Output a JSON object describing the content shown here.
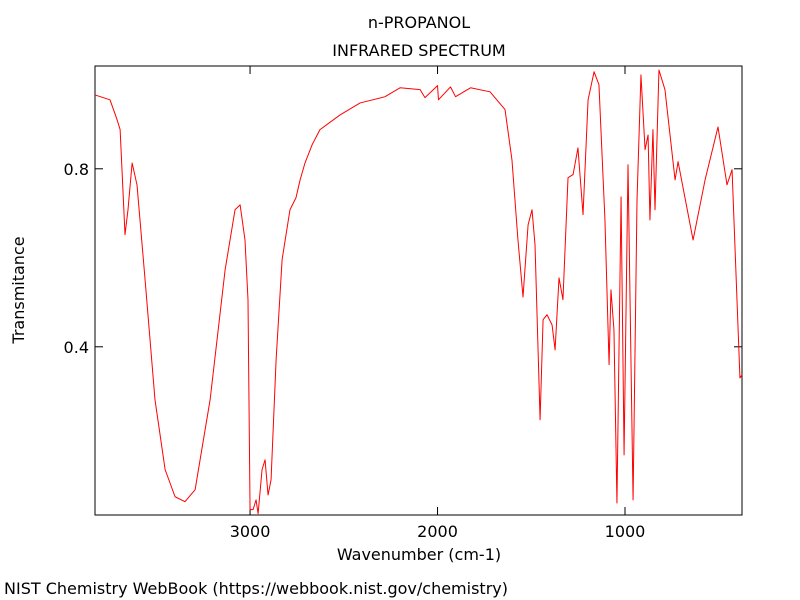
{
  "chart_data": {
    "type": "line",
    "title": "n-PROPANOL",
    "subtitle": "INFRARED SPECTRUM",
    "x_label": "Wavenumber (cm-1)",
    "y_label": "Transmitance",
    "footer": "NIST Chemistry WebBook (https://webbook.nist.gov/chemistry)",
    "color": "#ff0000",
    "xlim": [
      3827,
      376
    ],
    "ylim": [
      0.022,
      1.031
    ],
    "xticks": [
      3000,
      2000,
      1000
    ],
    "yticks": [
      0.8,
      0.4
    ],
    "grid": false,
    "x": [
      3827,
      3747,
      3709,
      3693,
      3667,
      3651,
      3629,
      3603,
      3560,
      3507,
      3453,
      3400,
      3347,
      3293,
      3213,
      3133,
      3080,
      3053,
      3027,
      3011,
      3000,
      2984,
      2968,
      2957,
      2936,
      2920,
      2904,
      2888,
      2861,
      2829,
      2787,
      2755,
      2733,
      2707,
      2669,
      2627,
      2520,
      2413,
      2280,
      2200,
      2093,
      2067,
      2000,
      1995,
      1931,
      1904,
      1824,
      1720,
      1640,
      1603,
      1571,
      1544,
      1517,
      1496,
      1480,
      1453,
      1437,
      1416,
      1389,
      1373,
      1352,
      1331,
      1304,
      1277,
      1251,
      1224,
      1197,
      1165,
      1139,
      1107,
      1085,
      1075,
      1059,
      1043,
      1021,
      1005,
      984,
      957,
      936,
      915,
      893,
      877,
      867,
      851,
      840,
      819,
      787,
      733,
      717,
      637,
      573,
      504,
      456,
      429,
      387,
      376
    ],
    "values": [
      0.966,
      0.955,
      0.91,
      0.888,
      0.652,
      0.708,
      0.813,
      0.764,
      0.551,
      0.281,
      0.124,
      0.063,
      0.052,
      0.079,
      0.281,
      0.573,
      0.708,
      0.719,
      0.64,
      0.506,
      0.034,
      0.034,
      0.056,
      0.025,
      0.124,
      0.146,
      0.067,
      0.101,
      0.371,
      0.596,
      0.708,
      0.735,
      0.775,
      0.813,
      0.854,
      0.888,
      0.921,
      0.948,
      0.962,
      0.982,
      0.978,
      0.96,
      0.987,
      0.955,
      0.984,
      0.962,
      0.982,
      0.973,
      0.933,
      0.82,
      0.64,
      0.512,
      0.674,
      0.708,
      0.629,
      0.236,
      0.461,
      0.472,
      0.449,
      0.393,
      0.555,
      0.506,
      0.78,
      0.787,
      0.847,
      0.697,
      0.955,
      1.018,
      0.989,
      0.685,
      0.36,
      0.528,
      0.438,
      0.049,
      0.737,
      0.157,
      0.809,
      0.056,
      0.73,
      1.011,
      0.843,
      0.876,
      0.685,
      0.888,
      0.708,
      1.022,
      0.978,
      0.775,
      0.816,
      0.64,
      0.775,
      0.894,
      0.764,
      0.798,
      0.33,
      0.337
    ]
  }
}
